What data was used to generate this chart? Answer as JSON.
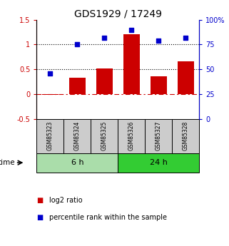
{
  "title": "GDS1929 / 17249",
  "samples": [
    "GSM85323",
    "GSM85324",
    "GSM85325",
    "GSM85326",
    "GSM85327",
    "GSM85328"
  ],
  "log2_ratio": [
    -0.02,
    0.33,
    0.52,
    1.2,
    0.36,
    0.66
  ],
  "percentile_rank": [
    46,
    75,
    82,
    90,
    79,
    82
  ],
  "groups": [
    {
      "label": "6 h",
      "indices": [
        0,
        1,
        2
      ],
      "color": "#aaddaa"
    },
    {
      "label": "24 h",
      "indices": [
        3,
        4,
        5
      ],
      "color": "#33cc33"
    }
  ],
  "bar_color": "#cc0000",
  "dot_color": "#0000cc",
  "left_ylim": [
    -0.5,
    1.5
  ],
  "right_ylim": [
    0,
    100
  ],
  "left_yticks": [
    -0.5,
    0,
    0.5,
    1.0,
    1.5
  ],
  "right_yticks": [
    0,
    25,
    50,
    75,
    100
  ],
  "left_yticklabels": [
    "-0.5",
    "0",
    "0.5",
    "1",
    "1.5"
  ],
  "right_yticklabels": [
    "0",
    "25",
    "50",
    "75",
    "100%"
  ],
  "hlines_black": [
    0.5,
    1.0
  ],
  "hline_red": 0.0,
  "legend_labels": [
    "log2 ratio",
    "percentile rank within the sample"
  ],
  "legend_colors": [
    "#cc0000",
    "#0000cc"
  ],
  "sample_box_color": "#cccccc",
  "time_label": "time",
  "bar_width": 0.6
}
